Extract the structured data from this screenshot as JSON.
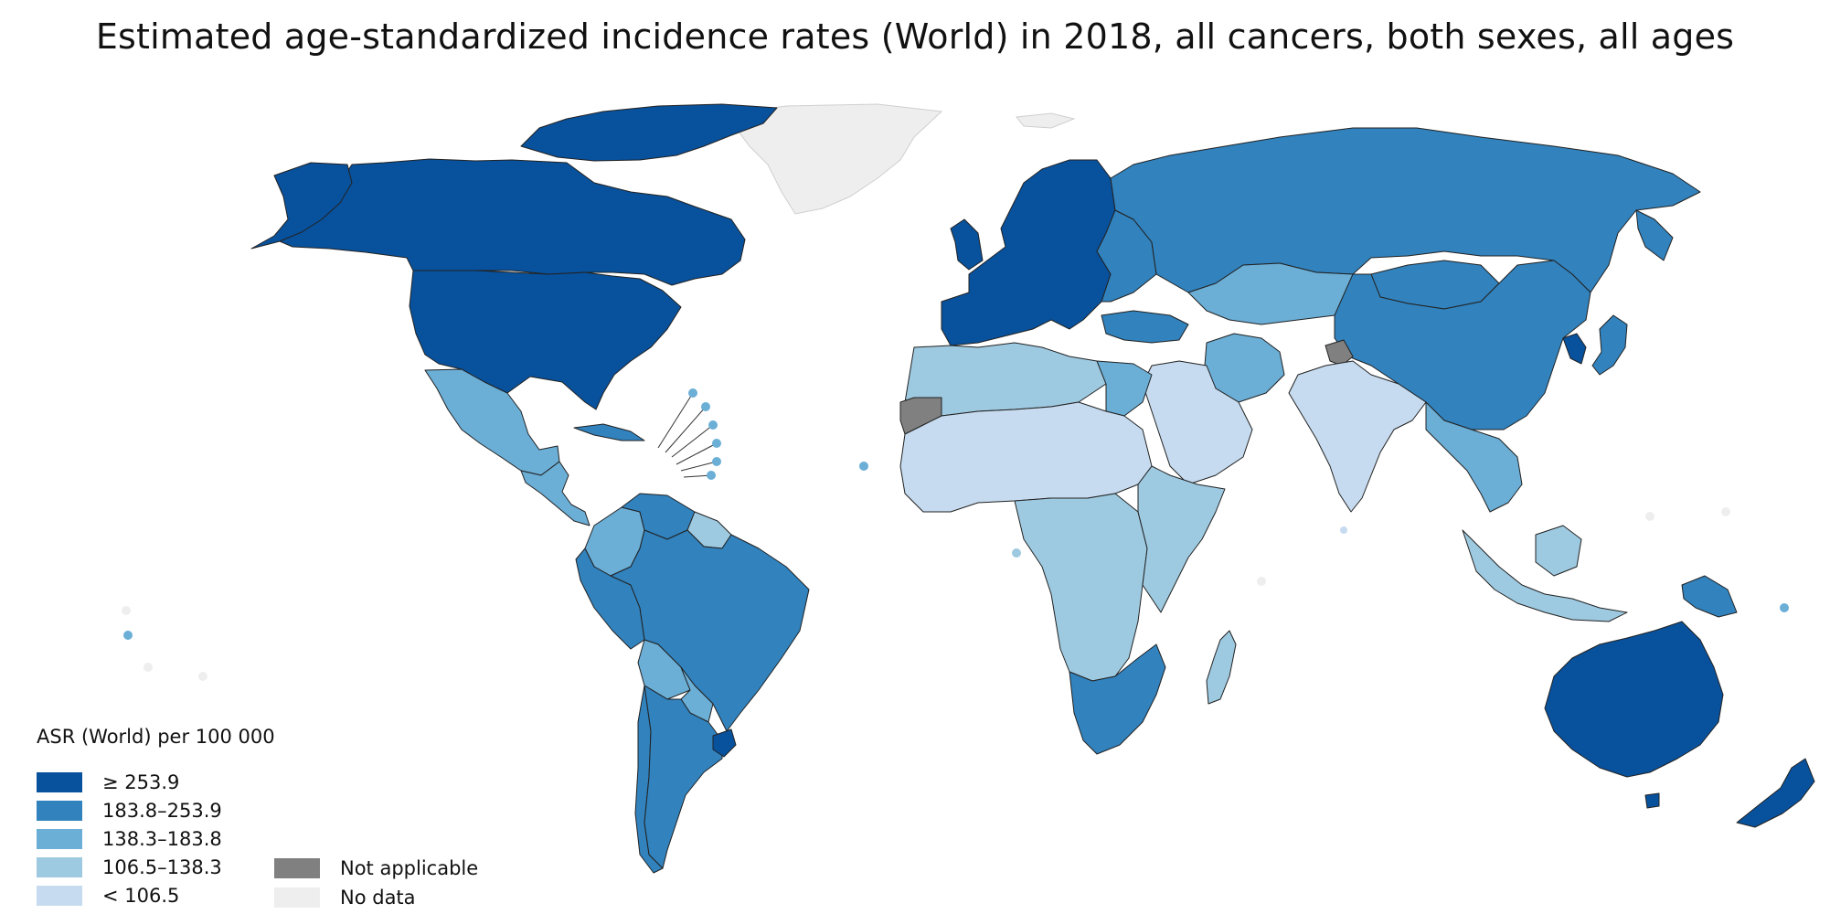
{
  "title": "Estimated age-standardized incidence rates (World) in 2018, all cancers, both sexes, all ages",
  "legend": {
    "title": "ASR (World) per 100 000",
    "classes": [
      {
        "label": "≥ 253.9",
        "color": "#08519c"
      },
      {
        "label": "183.8–253.9",
        "color": "#3182bd"
      },
      {
        "label": "138.3–183.8",
        "color": "#6baed6"
      },
      {
        "label": "106.5–138.3",
        "color": "#9ecae1"
      },
      {
        "label": "< 106.5",
        "color": "#c6dbef"
      }
    ],
    "extra": [
      {
        "label": "Not applicable",
        "color": "#808080"
      },
      {
        "label": "No data",
        "color": "#eeeeee"
      }
    ]
  },
  "map_data": {
    "type": "choropleth",
    "metric": "ASR (World) per 100 000",
    "regions": [
      {
        "name": "Canada",
        "class": 0
      },
      {
        "name": "United States",
        "class": 0
      },
      {
        "name": "Greenland",
        "class": "no-data"
      },
      {
        "name": "Mexico",
        "class": 2
      },
      {
        "name": "Central America",
        "class": 2
      },
      {
        "name": "Cuba",
        "class": 1
      },
      {
        "name": "Colombia",
        "class": 2
      },
      {
        "name": "Venezuela",
        "class": 1
      },
      {
        "name": "Guianas",
        "class": 3
      },
      {
        "name": "Brazil",
        "class": 1
      },
      {
        "name": "Peru",
        "class": 1
      },
      {
        "name": "Bolivia",
        "class": 2
      },
      {
        "name": "Paraguay",
        "class": 2
      },
      {
        "name": "Chile",
        "class": 1
      },
      {
        "name": "Argentina",
        "class": 1
      },
      {
        "name": "Uruguay",
        "class": 0
      },
      {
        "name": "Western Europe",
        "class": 0
      },
      {
        "name": "Eastern Europe",
        "class": 1
      },
      {
        "name": "Russia",
        "class": 1
      },
      {
        "name": "Kazakhstan",
        "class": 2
      },
      {
        "name": "China",
        "class": 1
      },
      {
        "name": "Mongolia",
        "class": 1
      },
      {
        "name": "Korea",
        "class": 0
      },
      {
        "name": "Japan",
        "class": 1
      },
      {
        "name": "India",
        "class": 4
      },
      {
        "name": "Arabian Peninsula",
        "class": 4
      },
      {
        "name": "Iran",
        "class": 2
      },
      {
        "name": "Turkey",
        "class": 1
      },
      {
        "name": "Egypt",
        "class": 2
      },
      {
        "name": "North Africa",
        "class": 3
      },
      {
        "name": "Western Sahara",
        "class": "not-applicable"
      },
      {
        "name": "Kashmir",
        "class": "not-applicable"
      },
      {
        "name": "Sahel",
        "class": 4
      },
      {
        "name": "Central Africa",
        "class": 3
      },
      {
        "name": "East Africa",
        "class": 3
      },
      {
        "name": "Southern Africa",
        "class": 1
      },
      {
        "name": "Madagascar",
        "class": 3
      },
      {
        "name": "Southeast Asia",
        "class": 2
      },
      {
        "name": "Indonesia",
        "class": 3
      },
      {
        "name": "Papua New Guinea",
        "class": 1
      },
      {
        "name": "Australia",
        "class": 0
      },
      {
        "name": "New Zealand",
        "class": 0
      }
    ]
  }
}
